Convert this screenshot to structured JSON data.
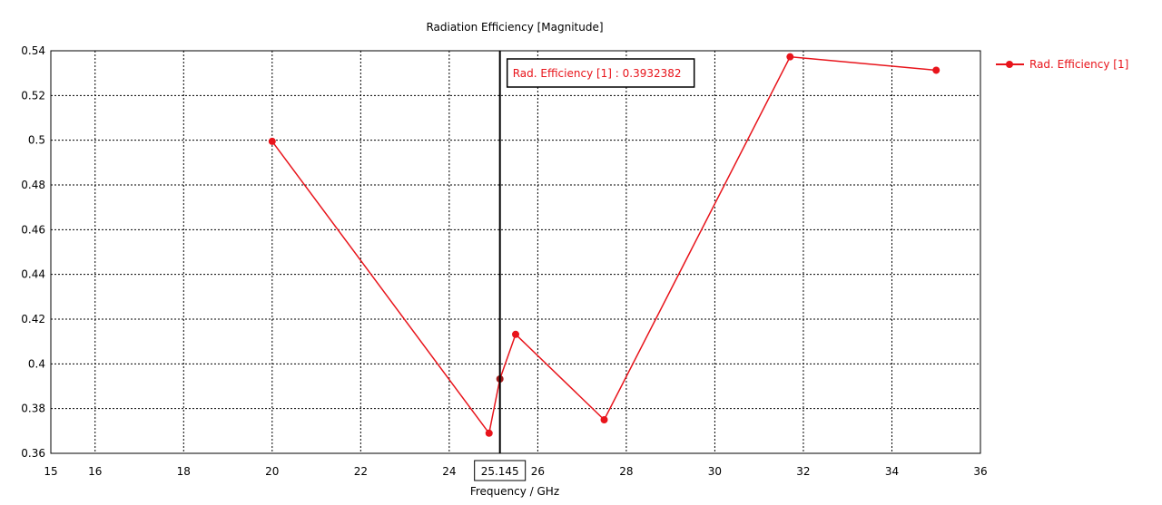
{
  "chart_data": {
    "type": "line",
    "title": "Radiation Efficiency [Magnitude]",
    "xlabel": "Frequency / GHz",
    "ylabel": "",
    "xlim": [
      15,
      36
    ],
    "ylim": [
      0.36,
      0.54
    ],
    "x_ticks": [
      15,
      16,
      18,
      20,
      22,
      24,
      26,
      28,
      30,
      32,
      34,
      36
    ],
    "x_tick_labels": [
      "15",
      "16",
      "18",
      "20",
      "22",
      "24",
      "26",
      "28",
      "30",
      "32",
      "34",
      "36"
    ],
    "y_ticks": [
      0.36,
      0.38,
      0.4,
      0.42,
      0.44,
      0.46,
      0.48,
      0.5,
      0.52,
      0.54
    ],
    "y_tick_labels": [
      "0.36",
      "0.38",
      "0.4",
      "0.42",
      "0.44",
      "0.46",
      "0.48",
      "0.5",
      "0.52",
      "0.54"
    ],
    "grid": true,
    "legend_position": "top-right",
    "series": [
      {
        "name": "Rad. Efficiency [1]",
        "color": "#e8141b",
        "x": [
          20,
          24.9,
          25.145,
          25.5,
          27.5,
          31.7,
          35
        ],
        "y": [
          0.4995,
          0.369,
          0.3932382,
          0.4132,
          0.375,
          0.5373,
          0.5313
        ]
      }
    ],
    "marker": {
      "x": 25.145,
      "x_label": "25.145",
      "label": "Rad. Efficiency [1] : 0.3932382"
    }
  }
}
